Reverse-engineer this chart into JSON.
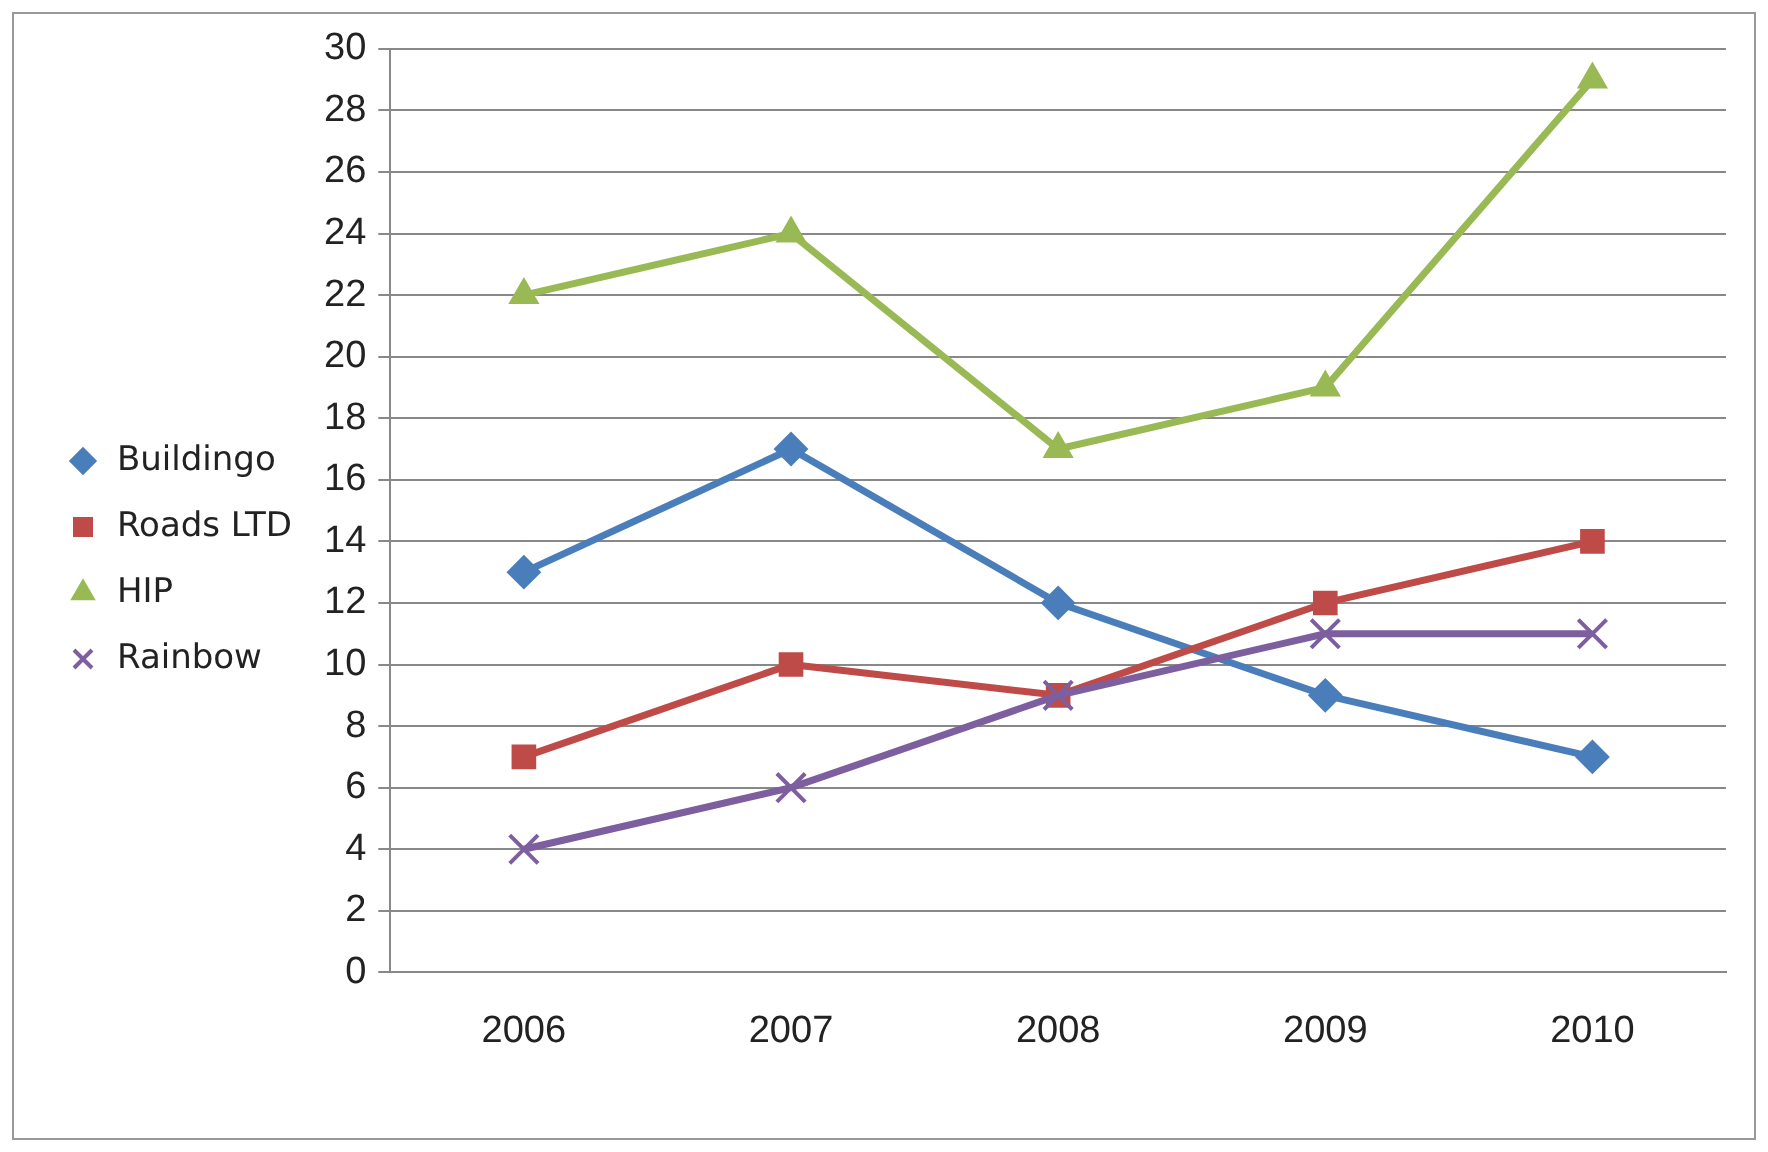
{
  "chart_data": {
    "type": "line",
    "categories": [
      "2006",
      "2007",
      "2008",
      "2009",
      "2010"
    ],
    "series": [
      {
        "name": "Buildingo",
        "color": "#4a7ebb",
        "marker": "diamond",
        "values": [
          13,
          17,
          12,
          9,
          7
        ]
      },
      {
        "name": "Roads LTD",
        "color": "#be4b48",
        "marker": "square",
        "values": [
          7,
          10,
          9,
          12,
          14
        ]
      },
      {
        "name": "HIP",
        "color": "#98b954",
        "marker": "triangle",
        "values": [
          22,
          24,
          17,
          19,
          29
        ]
      },
      {
        "name": "Rainbow",
        "color": "#7d5fa0",
        "marker": "cross",
        "values": [
          4,
          6,
          9,
          11,
          11
        ]
      }
    ],
    "ylim": [
      0,
      30
    ],
    "yticks": [
      0,
      2,
      4,
      6,
      8,
      10,
      12,
      14,
      16,
      18,
      20,
      22,
      24,
      26,
      28,
      30
    ],
    "grid": "y",
    "legend": "left",
    "line_style": "solid"
  }
}
